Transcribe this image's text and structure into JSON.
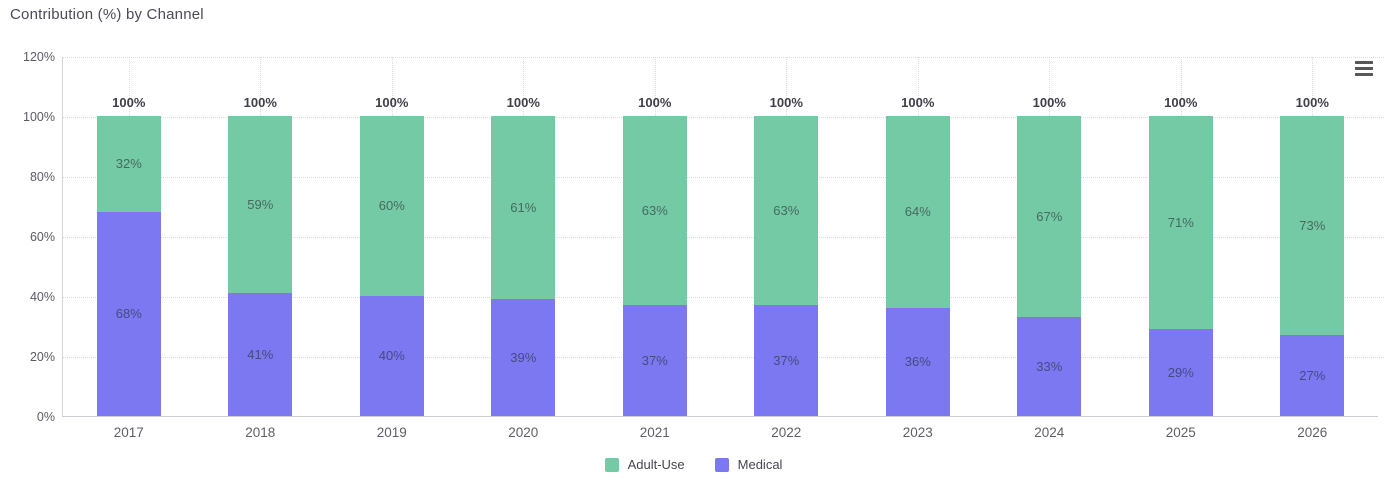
{
  "chart": {
    "title": "Contribution (%) by Channel",
    "colors": {
      "adult_use": "#74CAA4",
      "medical": "#7B78F2",
      "grid": "#d9d9df",
      "total_label": "#3f3f4a"
    }
  },
  "chart_data": {
    "type": "bar",
    "stacked": true,
    "stacking": "percent",
    "title": "Contribution (%) by Channel",
    "categories": [
      "2017",
      "2018",
      "2019",
      "2020",
      "2021",
      "2022",
      "2023",
      "2024",
      "2025",
      "2026"
    ],
    "series": [
      {
        "name": "Adult-Use",
        "color": "#74CAA4",
        "values": [
          32,
          59,
          60,
          61,
          63,
          63,
          64,
          67,
          71,
          73
        ]
      },
      {
        "name": "Medical",
        "color": "#7B78F2",
        "values": [
          68,
          41,
          40,
          39,
          37,
          37,
          36,
          33,
          29,
          27
        ]
      }
    ],
    "totals": [
      100,
      100,
      100,
      100,
      100,
      100,
      100,
      100,
      100,
      100
    ],
    "total_label_format": "{value}%",
    "data_label_format": "{value}%",
    "ylim": [
      0,
      120
    ],
    "yticks": [
      "0%",
      "20%",
      "40%",
      "60%",
      "80%",
      "100%",
      "120%"
    ],
    "xlabel": "",
    "ylabel": "",
    "grid": "dotted",
    "legend_position": "bottom"
  },
  "toolbar": {
    "context_menu": "chart context menu"
  }
}
